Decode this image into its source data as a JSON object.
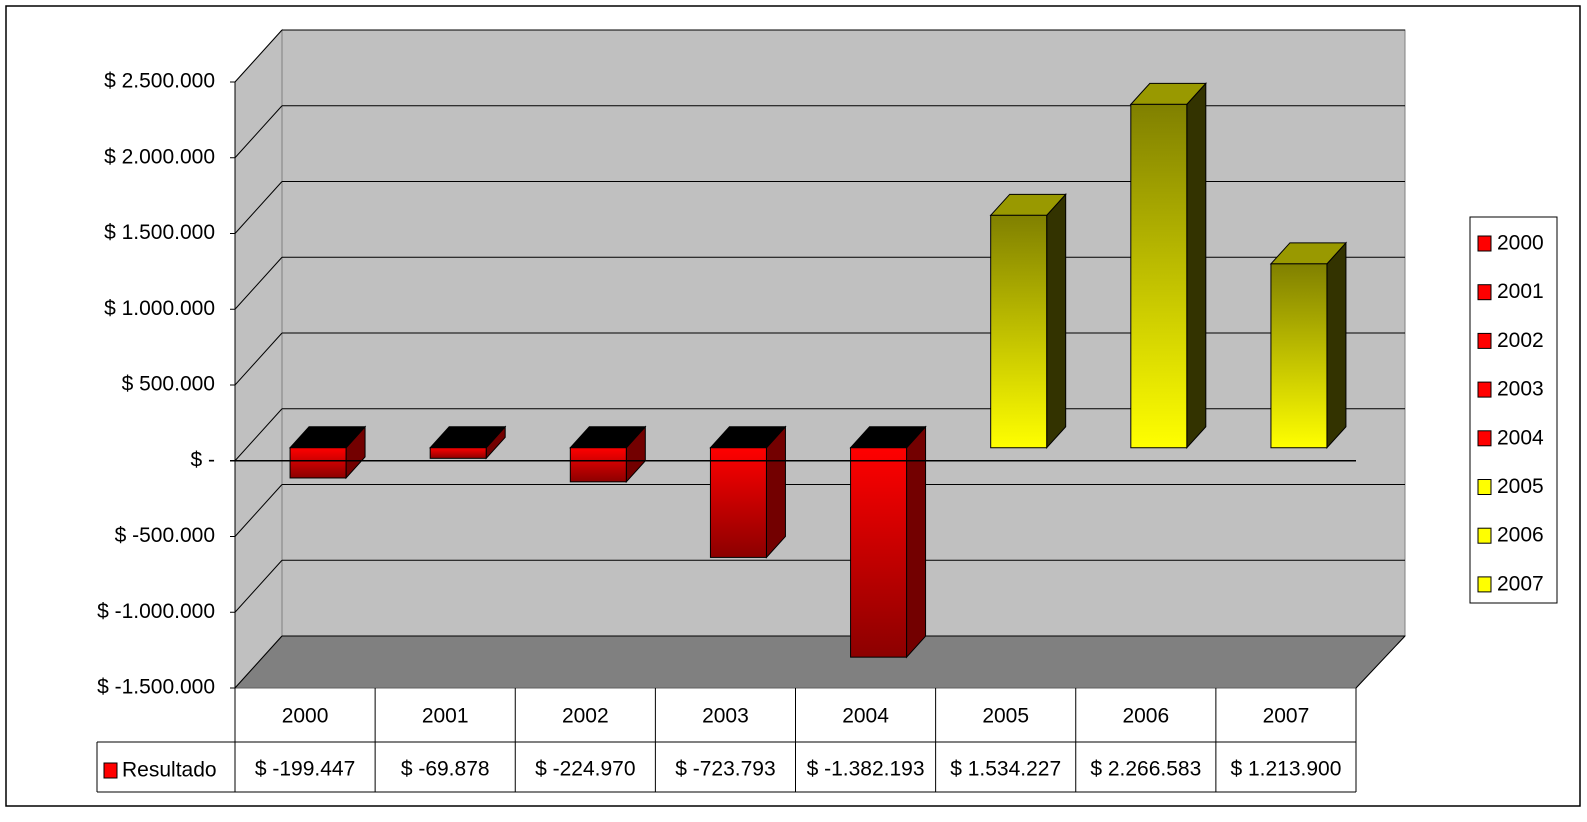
{
  "chart_data": {
    "type": "bar3d",
    "categories": [
      "2000",
      "2001",
      "2002",
      "2003",
      "2004",
      "2005",
      "2006",
      "2007"
    ],
    "series": [
      {
        "name": "Resultado",
        "color": "#ff0000",
        "colors": [
          "#ff0000",
          "#ff0000",
          "#ff0000",
          "#ff0000",
          "#ff0000",
          "#ffff00",
          "#ffff00",
          "#ffff00"
        ],
        "values": [
          -199447,
          -69878,
          -224970,
          -723793,
          -1382193,
          1534227,
          2266583,
          1213900
        ],
        "value_labels": [
          "$ -199.447",
          "$ -69.878",
          "$ -224.970",
          "$ -723.793",
          "$ -1.382.193",
          "$ 1.534.227",
          "$ 2.266.583",
          "$ 1.213.900"
        ]
      }
    ],
    "ylim": [
      -1500000,
      2500000
    ],
    "yticks": [
      {
        "value": -1500000,
        "label": "$ -1.500.000"
      },
      {
        "value": -1000000,
        "label": "$ -1.000.000"
      },
      {
        "value": -500000,
        "label": "$ -500.000"
      },
      {
        "value": 0,
        "label": "$ -"
      },
      {
        "value": 500000,
        "label": "$ 500.000"
      },
      {
        "value": 1000000,
        "label": "$ 1.000.000"
      },
      {
        "value": 1500000,
        "label": "$ 1.500.000"
      },
      {
        "value": 2000000,
        "label": "$ 2.000.000"
      },
      {
        "value": 2500000,
        "label": "$ 2.500.000"
      }
    ],
    "grid": true,
    "legend": "right",
    "data_table": true
  }
}
